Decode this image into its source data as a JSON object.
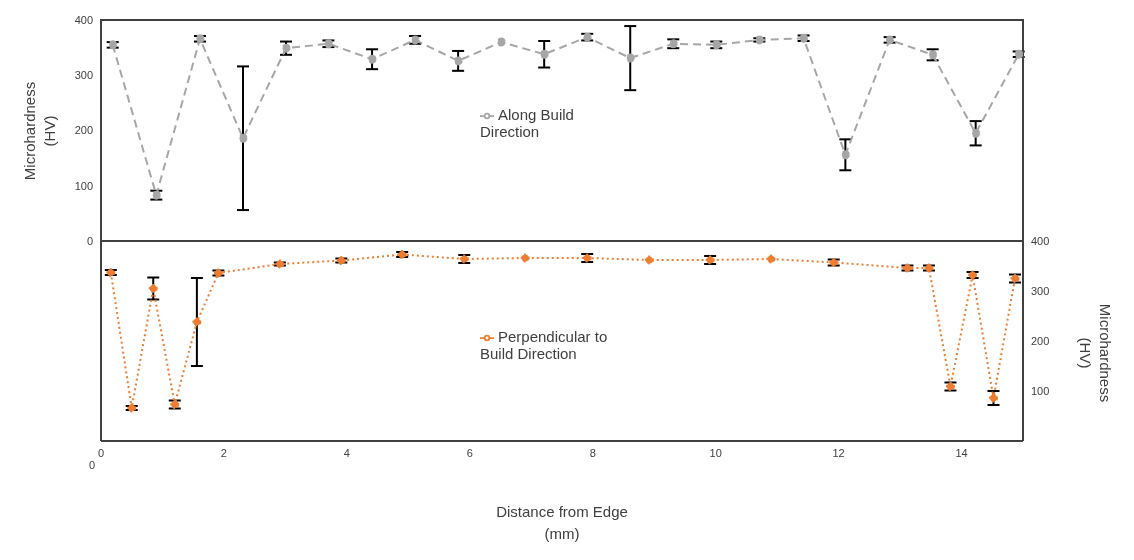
{
  "chart_data": [
    {
      "type": "line",
      "ylabel": "Microhardness\n(HV)",
      "xlim": [
        0,
        15
      ],
      "xticks": [
        0,
        2,
        4,
        6,
        8,
        10,
        12,
        14
      ],
      "ylim": [
        0,
        400
      ],
      "yticks": [
        0,
        100,
        200,
        300,
        400
      ],
      "tick_labels": "y",
      "legend": "center",
      "marker": "circle",
      "line_style": "dashed",
      "grid": false,
      "series": [
        {
          "name": "Along Build Direction",
          "color": "#a6a6a6",
          "x": [
            0.19,
            0.9,
            1.61,
            2.31,
            3.01,
            3.7,
            4.41,
            5.11,
            5.81,
            6.51,
            7.21,
            7.91,
            8.61,
            9.31,
            10.01,
            10.71,
            11.43,
            12.11,
            12.83,
            13.53,
            14.23,
            14.93
          ],
          "values": [
            355,
            83,
            366,
            186,
            349,
            357,
            329,
            364,
            326,
            360,
            338,
            369,
            331,
            357,
            355,
            364,
            367,
            156,
            364,
            337,
            195,
            338
          ],
          "errors": [
            5,
            8,
            5,
            130,
            12,
            6,
            18,
            7,
            18,
            null,
            24,
            6,
            58,
            8,
            6,
            3,
            5,
            28,
            5,
            10,
            22,
            5
          ]
        }
      ]
    },
    {
      "type": "line",
      "xlabel": "Distance from Edge\n(mm)",
      "y2label": "Microhardness\n(HV)",
      "xlim": [
        0,
        15
      ],
      "xticks": [
        0,
        2,
        4,
        6,
        8,
        10,
        12,
        14
      ],
      "annotations": [
        "0"
      ],
      "y2lim": [
        0,
        400
      ],
      "y2ticks": [
        100,
        200,
        300,
        400
      ],
      "legend": "center",
      "marker": "circle",
      "line_style": "dotted",
      "grid": false,
      "series": [
        {
          "name": "Perpendicular to Build Direction",
          "color": "#ed7d31",
          "axis": "y2",
          "x": [
            0.16,
            0.5,
            0.85,
            1.2,
            1.56,
            1.91,
            2.91,
            3.91,
            4.9,
            5.91,
            6.9,
            7.91,
            8.92,
            9.91,
            10.9,
            11.92,
            13.12,
            13.47,
            13.82,
            14.18,
            14.52,
            14.87
          ],
          "values": [
            337,
            66,
            305,
            73,
            238,
            336,
            354,
            361,
            373,
            364,
            366,
            366,
            362,
            362,
            364,
            357,
            346,
            346,
            109,
            332,
            86,
            325
          ],
          "errors": [
            5,
            4,
            22,
            8,
            88,
            5,
            3,
            4,
            5,
            8,
            null,
            8,
            null,
            8,
            null,
            6,
            5,
            5,
            8,
            6,
            14,
            8
          ]
        }
      ]
    }
  ]
}
